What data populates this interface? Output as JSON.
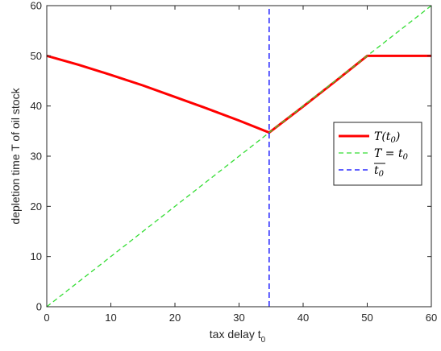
{
  "chart_data": {
    "type": "line",
    "title": "",
    "xlabel_main": "tax delay t",
    "xlabel_sub": "0",
    "ylabel": "depletion time T of oil stock",
    "xlim": [
      0,
      60
    ],
    "ylim": [
      0,
      60
    ],
    "xticks": [
      0,
      10,
      20,
      30,
      40,
      50,
      60
    ],
    "yticks": [
      0,
      10,
      20,
      30,
      40,
      50,
      60
    ],
    "grid": false,
    "legend_position": "right",
    "series": [
      {
        "name": "T(t0)",
        "legend_main": "T(t",
        "legend_sub": "0",
        "legend_end": ")",
        "color": "#ff0000",
        "style": "solid",
        "x": [
          0,
          5,
          10,
          15,
          20,
          25,
          30,
          34.7,
          40,
          45,
          50,
          55,
          60
        ],
        "y": [
          50,
          48.2,
          46.2,
          44.1,
          41.8,
          39.5,
          37.1,
          34.7,
          39.9,
          44.9,
          50,
          50,
          50
        ]
      },
      {
        "name": "T = t0",
        "legend_main": "T = t",
        "legend_sub": "0",
        "legend_end": "",
        "color": "#33dd33",
        "style": "dashed",
        "x": [
          0,
          60
        ],
        "y": [
          0,
          60
        ]
      },
      {
        "name": "overline t0",
        "legend_main": "t",
        "legend_sub": "0",
        "legend_end": "",
        "overline": true,
        "color": "#0000ff",
        "style": "dashed",
        "x": [
          34.7,
          34.7
        ],
        "y": [
          0,
          60
        ]
      }
    ]
  }
}
